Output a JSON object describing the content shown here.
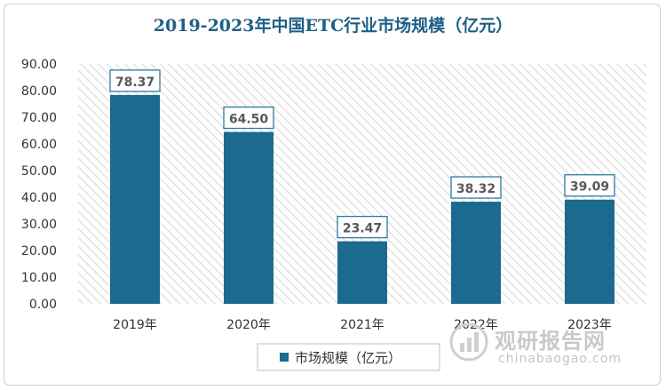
{
  "chart_data": {
    "type": "bar",
    "title": "2019-2023年中国ETC行业市场规模（亿元）",
    "categories": [
      "2019年",
      "2020年",
      "2021年",
      "2022年",
      "2023年"
    ],
    "series": [
      {
        "name": "市场规模（亿元）",
        "values": [
          78.37,
          64.5,
          23.47,
          38.32,
          39.09
        ]
      }
    ],
    "data_labels": [
      "78.37",
      "64.50",
      "23.47",
      "38.32",
      "39.09"
    ],
    "y_ticks": [
      "0.00",
      "10.00",
      "20.00",
      "30.00",
      "40.00",
      "50.00",
      "60.00",
      "70.00",
      "80.00",
      "90.00"
    ],
    "ylim": [
      0,
      90
    ],
    "xlabel": "",
    "ylabel": "",
    "legend_position": "bottom",
    "grid": false,
    "bar_color": "#1c6a8e",
    "title_color": "#1f5f86"
  },
  "watermark": {
    "name_cn": "观研报告网",
    "name_en": "chinabaogao.com"
  }
}
